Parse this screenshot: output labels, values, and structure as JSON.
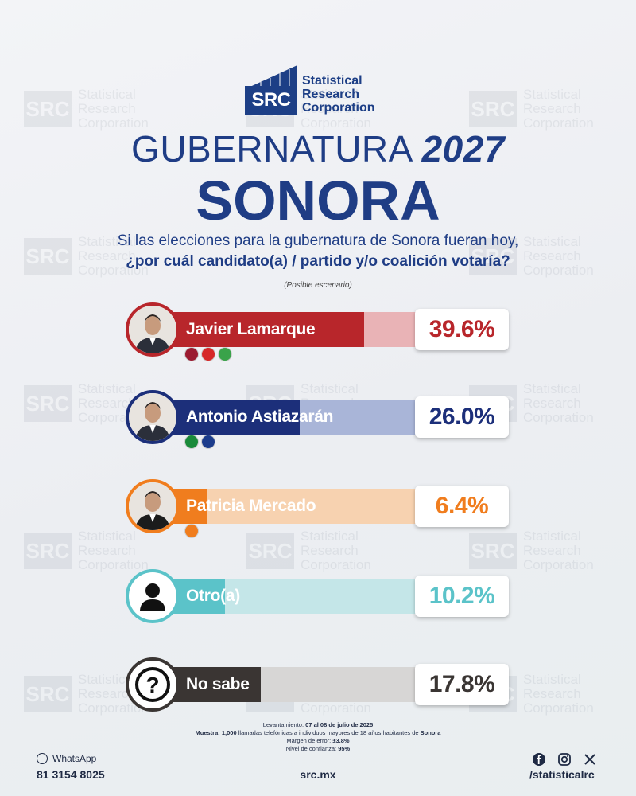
{
  "brand": {
    "mark": "SRC",
    "line1": "Statistical",
    "line2": "Research",
    "line3": "Corporation"
  },
  "title": {
    "prefix": "GUBERNATURA",
    "year": "2027",
    "state": "SONORA"
  },
  "question": {
    "line1": "Si las elecciones para la gubernatura de Sonora fueran hoy,",
    "line2": "¿por cuál candidato(a) / partido y/o coalición votaría?",
    "note": "(Posible escenario)"
  },
  "colors": {
    "brand_blue": "#1f3d85",
    "morena_red": "#b8262b",
    "pan_pri_blue": "#1c2f7a",
    "mc_orange": "#f07d1e",
    "otro_teal": "#5bc3c9",
    "nosabe_dark": "#3a3533"
  },
  "chart_data": {
    "type": "bar",
    "orientation": "horizontal",
    "unit": "%",
    "categories": [
      "Javier Lamarque",
      "Antonio Astiazarán",
      "Patricia Mercado",
      "Otro(a)",
      "No sabe"
    ],
    "values": [
      39.6,
      26.0,
      6.4,
      10.2,
      17.8
    ],
    "labels": [
      "39.6%",
      "26.0%",
      "6.4%",
      "10.2%",
      "17.8%"
    ],
    "colors": [
      "#b8262b",
      "#1c2f7a",
      "#f07d1e",
      "#5bc3c9",
      "#3a3533"
    ],
    "track_colors": [
      "#e9b3b6",
      "#a9b5d8",
      "#f7d2b0",
      "#c4e6e8",
      "#d7d6d5"
    ],
    "text_colors": [
      "#b8262b",
      "#1c2f7a",
      "#f07d1e",
      "#5bc3c9",
      "#3a3533"
    ],
    "parties": [
      [
        "morena",
        "PT",
        "VERDE"
      ],
      [
        "PRI",
        "PAN"
      ],
      [
        "MC"
      ],
      [],
      []
    ],
    "avatar_icons": [
      "candidate-photo",
      "candidate-photo",
      "candidate-photo",
      "person-icon",
      "question-icon"
    ],
    "xlim": [
      0,
      50
    ]
  },
  "methodology": {
    "fieldwork_label": "Levantamiento:",
    "fieldwork_value": "07 al 08 de julio de 2025",
    "sample_label": "Muestra:",
    "sample_text_a": "1,000",
    "sample_text_b": "llamadas telefónicas a individuos mayores de 18 años habitantes de",
    "sample_text_c": "Sonora",
    "error_label": "Margen de error:",
    "error_value": "±3.8%",
    "confidence_label": "Nivel de confianza:",
    "confidence_value": "95%"
  },
  "footer": {
    "whatsapp_label": "WhatsApp",
    "phone": "81 3154 8025",
    "site": "src.mx",
    "handle": "/statisticalrc"
  }
}
